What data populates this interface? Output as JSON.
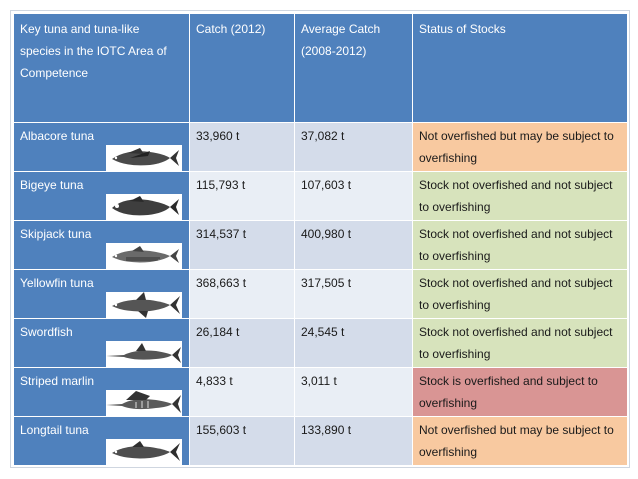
{
  "table": {
    "headers": [
      "Key tuna and tuna-like species in the IOTC Area of Competence",
      "Catch (2012)",
      "Average Catch (2008-2012)",
      "Status of Stocks"
    ],
    "rows": [
      {
        "species": "Albacore tuna",
        "catch_2012": "33,960 t",
        "average_catch": "37,082 t",
        "status": "Not overfished but may be subject to overfishing",
        "status_color": "#f8c9a0",
        "icon": "albacore-tuna-icon"
      },
      {
        "species": "Bigeye tuna",
        "catch_2012": "115,793 t",
        "average_catch": "107,603 t",
        "status": "Stock not overfished and not subject to overfishing",
        "status_color": "#d7e3bc",
        "icon": "bigeye-tuna-icon"
      },
      {
        "species": "Skipjack tuna",
        "catch_2012": "314,537 t",
        "average_catch": "400,980 t",
        "status": "Stock not overfished and not subject to overfishing",
        "status_color": "#d7e3bc",
        "icon": "skipjack-tuna-icon"
      },
      {
        "species": "Yellowfin tuna",
        "catch_2012": "368,663 t",
        "average_catch": "317,505 t",
        "status": "Stock not overfished and not subject to overfishing",
        "status_color": "#d7e3bc",
        "icon": "yellowfin-tuna-icon"
      },
      {
        "species": "Swordfish",
        "catch_2012": "26,184 t",
        "average_catch": "24,545 t",
        "status": "Stock not overfished and not subject to overfishing",
        "status_color": "#d7e3bc",
        "icon": "swordfish-icon"
      },
      {
        "species": "Striped marlin",
        "catch_2012": "4,833 t",
        "average_catch": "3,011 t",
        "status": "Stock is overfished and subject to overfishing",
        "status_color": "#d99594",
        "icon": "striped-marlin-icon"
      },
      {
        "species": "Longtail tuna",
        "catch_2012": "155,603 t",
        "average_catch": "133,890 t",
        "status": "Not overfished but may be subject to overfishing",
        "status_color": "#f8c9a0",
        "icon": "longtail-tuna-icon"
      }
    ]
  },
  "colors": {
    "header_blue": "#4f81bd",
    "cell_light_a": "#d4dcea",
    "cell_light_b": "#e9eef5",
    "status_orange": "#f8c9a0",
    "status_green": "#d7e3bc",
    "status_red": "#d99594"
  }
}
